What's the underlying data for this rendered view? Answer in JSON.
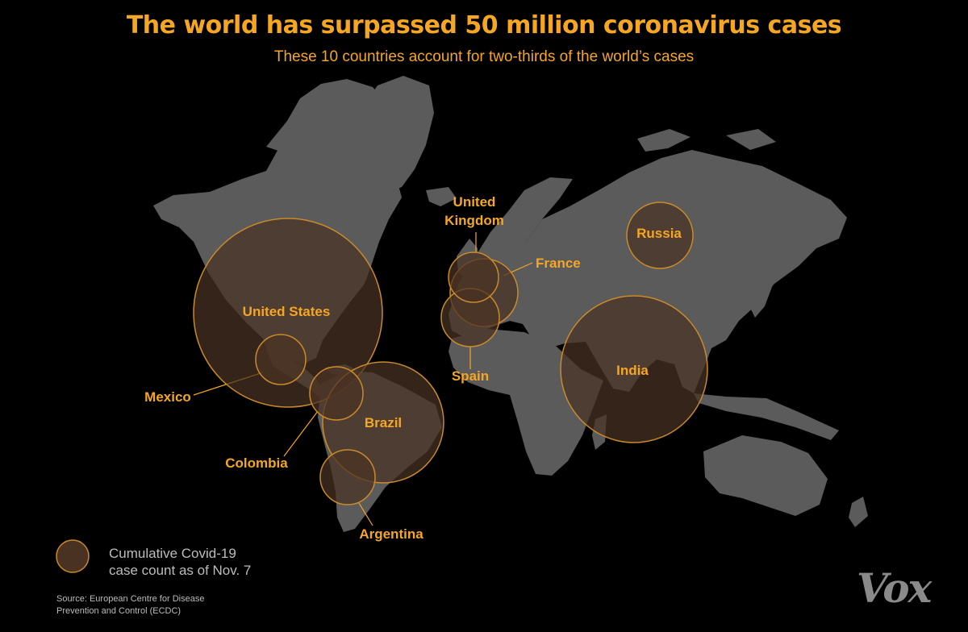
{
  "title": "The world has surpassed 50 million coronavirus cases",
  "subtitle": "These 10 countries account for two-thirds of the world’s cases",
  "legend": {
    "line1": "Cumulative Covid-19",
    "line2": "case count as of Nov. 7"
  },
  "source": {
    "line1": "Source:  European Centre for Disease",
    "line2": "Prevention and Control (ECDC)"
  },
  "brand": "Vox",
  "colors": {
    "background": "#000000",
    "land": "#5b5b5b",
    "accent": "#f5a623",
    "bubble_fill": "#4a3222",
    "bubble_stroke": "#c98a2c",
    "secondary_text": "#bcbcbc",
    "brand": "#8a8a8a"
  },
  "countries": [
    {
      "name": "United States",
      "lines": [
        "United States"
      ]
    },
    {
      "name": "India",
      "lines": [
        "India"
      ]
    },
    {
      "name": "Brazil",
      "lines": [
        "Brazil"
      ]
    },
    {
      "name": "Russia",
      "lines": [
        "Russia"
      ]
    },
    {
      "name": "France",
      "lines": [
        "France"
      ]
    },
    {
      "name": "Spain",
      "lines": [
        "Spain"
      ]
    },
    {
      "name": "United Kingdom",
      "lines": [
        "United",
        "Kingdom"
      ]
    },
    {
      "name": "Argentina",
      "lines": [
        "Argentina"
      ]
    },
    {
      "name": "Colombia",
      "lines": [
        "Colombia"
      ]
    },
    {
      "name": "Mexico",
      "lines": [
        "Mexico"
      ]
    }
  ]
}
